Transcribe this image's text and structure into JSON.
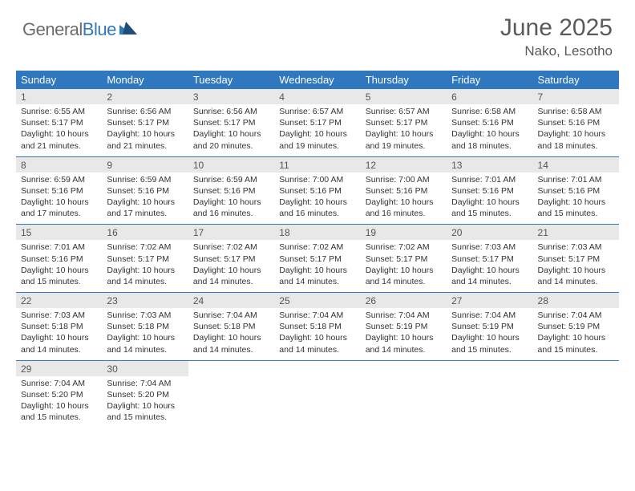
{
  "brand": {
    "part1": "General",
    "part2": "Blue"
  },
  "title": "June 2025",
  "location": "Nako, Lesotho",
  "colors": {
    "accent": "#2f78bf",
    "daynum_bg": "#e8e8e8",
    "text": "#333333",
    "header_text": "#5a5a5a"
  },
  "day_headers": [
    "Sunday",
    "Monday",
    "Tuesday",
    "Wednesday",
    "Thursday",
    "Friday",
    "Saturday"
  ],
  "weeks": [
    [
      {
        "n": "1",
        "sr": "Sunrise: 6:55 AM",
        "ss": "Sunset: 5:17 PM",
        "d1": "Daylight: 10 hours",
        "d2": "and 21 minutes."
      },
      {
        "n": "2",
        "sr": "Sunrise: 6:56 AM",
        "ss": "Sunset: 5:17 PM",
        "d1": "Daylight: 10 hours",
        "d2": "and 21 minutes."
      },
      {
        "n": "3",
        "sr": "Sunrise: 6:56 AM",
        "ss": "Sunset: 5:17 PM",
        "d1": "Daylight: 10 hours",
        "d2": "and 20 minutes."
      },
      {
        "n": "4",
        "sr": "Sunrise: 6:57 AM",
        "ss": "Sunset: 5:17 PM",
        "d1": "Daylight: 10 hours",
        "d2": "and 19 minutes."
      },
      {
        "n": "5",
        "sr": "Sunrise: 6:57 AM",
        "ss": "Sunset: 5:17 PM",
        "d1": "Daylight: 10 hours",
        "d2": "and 19 minutes."
      },
      {
        "n": "6",
        "sr": "Sunrise: 6:58 AM",
        "ss": "Sunset: 5:16 PM",
        "d1": "Daylight: 10 hours",
        "d2": "and 18 minutes."
      },
      {
        "n": "7",
        "sr": "Sunrise: 6:58 AM",
        "ss": "Sunset: 5:16 PM",
        "d1": "Daylight: 10 hours",
        "d2": "and 18 minutes."
      }
    ],
    [
      {
        "n": "8",
        "sr": "Sunrise: 6:59 AM",
        "ss": "Sunset: 5:16 PM",
        "d1": "Daylight: 10 hours",
        "d2": "and 17 minutes."
      },
      {
        "n": "9",
        "sr": "Sunrise: 6:59 AM",
        "ss": "Sunset: 5:16 PM",
        "d1": "Daylight: 10 hours",
        "d2": "and 17 minutes."
      },
      {
        "n": "10",
        "sr": "Sunrise: 6:59 AM",
        "ss": "Sunset: 5:16 PM",
        "d1": "Daylight: 10 hours",
        "d2": "and 16 minutes."
      },
      {
        "n": "11",
        "sr": "Sunrise: 7:00 AM",
        "ss": "Sunset: 5:16 PM",
        "d1": "Daylight: 10 hours",
        "d2": "and 16 minutes."
      },
      {
        "n": "12",
        "sr": "Sunrise: 7:00 AM",
        "ss": "Sunset: 5:16 PM",
        "d1": "Daylight: 10 hours",
        "d2": "and 16 minutes."
      },
      {
        "n": "13",
        "sr": "Sunrise: 7:01 AM",
        "ss": "Sunset: 5:16 PM",
        "d1": "Daylight: 10 hours",
        "d2": "and 15 minutes."
      },
      {
        "n": "14",
        "sr": "Sunrise: 7:01 AM",
        "ss": "Sunset: 5:16 PM",
        "d1": "Daylight: 10 hours",
        "d2": "and 15 minutes."
      }
    ],
    [
      {
        "n": "15",
        "sr": "Sunrise: 7:01 AM",
        "ss": "Sunset: 5:16 PM",
        "d1": "Daylight: 10 hours",
        "d2": "and 15 minutes."
      },
      {
        "n": "16",
        "sr": "Sunrise: 7:02 AM",
        "ss": "Sunset: 5:17 PM",
        "d1": "Daylight: 10 hours",
        "d2": "and 14 minutes."
      },
      {
        "n": "17",
        "sr": "Sunrise: 7:02 AM",
        "ss": "Sunset: 5:17 PM",
        "d1": "Daylight: 10 hours",
        "d2": "and 14 minutes."
      },
      {
        "n": "18",
        "sr": "Sunrise: 7:02 AM",
        "ss": "Sunset: 5:17 PM",
        "d1": "Daylight: 10 hours",
        "d2": "and 14 minutes."
      },
      {
        "n": "19",
        "sr": "Sunrise: 7:02 AM",
        "ss": "Sunset: 5:17 PM",
        "d1": "Daylight: 10 hours",
        "d2": "and 14 minutes."
      },
      {
        "n": "20",
        "sr": "Sunrise: 7:03 AM",
        "ss": "Sunset: 5:17 PM",
        "d1": "Daylight: 10 hours",
        "d2": "and 14 minutes."
      },
      {
        "n": "21",
        "sr": "Sunrise: 7:03 AM",
        "ss": "Sunset: 5:17 PM",
        "d1": "Daylight: 10 hours",
        "d2": "and 14 minutes."
      }
    ],
    [
      {
        "n": "22",
        "sr": "Sunrise: 7:03 AM",
        "ss": "Sunset: 5:18 PM",
        "d1": "Daylight: 10 hours",
        "d2": "and 14 minutes."
      },
      {
        "n": "23",
        "sr": "Sunrise: 7:03 AM",
        "ss": "Sunset: 5:18 PM",
        "d1": "Daylight: 10 hours",
        "d2": "and 14 minutes."
      },
      {
        "n": "24",
        "sr": "Sunrise: 7:04 AM",
        "ss": "Sunset: 5:18 PM",
        "d1": "Daylight: 10 hours",
        "d2": "and 14 minutes."
      },
      {
        "n": "25",
        "sr": "Sunrise: 7:04 AM",
        "ss": "Sunset: 5:18 PM",
        "d1": "Daylight: 10 hours",
        "d2": "and 14 minutes."
      },
      {
        "n": "26",
        "sr": "Sunrise: 7:04 AM",
        "ss": "Sunset: 5:19 PM",
        "d1": "Daylight: 10 hours",
        "d2": "and 14 minutes."
      },
      {
        "n": "27",
        "sr": "Sunrise: 7:04 AM",
        "ss": "Sunset: 5:19 PM",
        "d1": "Daylight: 10 hours",
        "d2": "and 15 minutes."
      },
      {
        "n": "28",
        "sr": "Sunrise: 7:04 AM",
        "ss": "Sunset: 5:19 PM",
        "d1": "Daylight: 10 hours",
        "d2": "and 15 minutes."
      }
    ],
    [
      {
        "n": "29",
        "sr": "Sunrise: 7:04 AM",
        "ss": "Sunset: 5:20 PM",
        "d1": "Daylight: 10 hours",
        "d2": "and 15 minutes."
      },
      {
        "n": "30",
        "sr": "Sunrise: 7:04 AM",
        "ss": "Sunset: 5:20 PM",
        "d1": "Daylight: 10 hours",
        "d2": "and 15 minutes."
      },
      null,
      null,
      null,
      null,
      null
    ]
  ]
}
